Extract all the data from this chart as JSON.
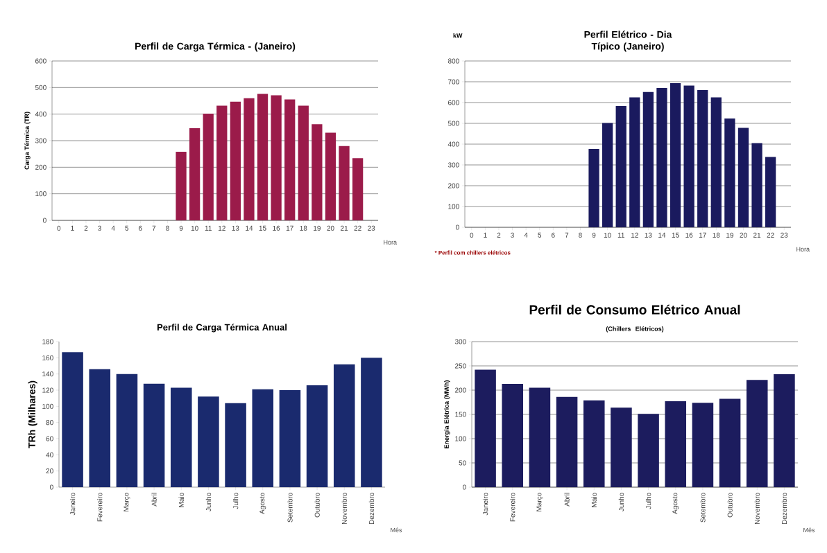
{
  "chart_data": [
    {
      "type": "bar",
      "title": "Perfil de Carga Térmica - (Janeiro)",
      "ylabel": "Carga Térmica (TR)",
      "xlabel": "Hora",
      "categories": [
        "0",
        "1",
        "2",
        "3",
        "4",
        "5",
        "6",
        "7",
        "8",
        "9",
        "10",
        "11",
        "12",
        "13",
        "14",
        "15",
        "16",
        "17",
        "18",
        "19",
        "20",
        "21",
        "22",
        "23"
      ],
      "values": [
        0,
        0,
        0,
        0,
        0,
        0,
        0,
        0,
        0,
        258,
        347,
        402,
        432,
        447,
        460,
        476,
        471,
        455,
        432,
        362,
        330,
        280,
        234,
        0
      ],
      "color": "#9b1b4a",
      "ylim": [
        0,
        600
      ],
      "yticks": [
        0,
        100,
        200,
        300,
        400,
        500,
        600
      ],
      "grid": "y"
    },
    {
      "type": "bar",
      "title": "Perfil Elétrico - Dia Típico (Janeiro)",
      "ylabel": "kW",
      "xlabel": "Hora",
      "annotations": [
        "* Perfil com chillers elétricos"
      ],
      "categories": [
        "0",
        "1",
        "2",
        "3",
        "4",
        "5",
        "6",
        "7",
        "8",
        "9",
        "10",
        "11",
        "12",
        "13",
        "14",
        "15",
        "16",
        "17",
        "18",
        "19",
        "20",
        "21",
        "22",
        "23"
      ],
      "values": [
        0,
        0,
        0,
        0,
        0,
        0,
        0,
        0,
        0,
        377,
        502,
        583,
        625,
        651,
        670,
        693,
        682,
        660,
        625,
        523,
        478,
        405,
        338,
        0
      ],
      "color": "#1a1a5e",
      "ylim": [
        0,
        800
      ],
      "yticks": [
        0,
        100,
        200,
        300,
        400,
        500,
        600,
        700,
        800
      ],
      "grid": "y"
    },
    {
      "type": "bar",
      "title": "Perfil de Carga Térmica Anual",
      "ylabel": "TRh (Milhares)",
      "xlabel": "Mês",
      "categories": [
        "Janeiro",
        "Fevereiro",
        "Março",
        "Abril",
        "Maio",
        "Junho",
        "Julho",
        "Agosto",
        "Setembro",
        "Outubro",
        "Novembro",
        "Dezembro"
      ],
      "values": [
        167,
        146,
        140,
        128,
        123,
        112,
        104,
        121,
        120,
        126,
        152,
        160
      ],
      "color": "#1a2a6e",
      "ylim": [
        0,
        180
      ],
      "yticks": [
        0,
        20,
        40,
        60,
        80,
        100,
        120,
        140,
        160,
        180
      ]
    },
    {
      "type": "bar",
      "title": "Perfil de Consumo Elétrico Anual",
      "subtitle": "(Chillers Elétricos)",
      "ylabel": "Energia Elétrica (MWh)",
      "xlabel": "Mês",
      "categories": [
        "Janeiro",
        "Fevereiro",
        "Março",
        "Abril",
        "Maio",
        "Junho",
        "Julho",
        "Agosto",
        "Setembro",
        "Outubro",
        "Novembro",
        "Dezembro"
      ],
      "values": [
        242,
        213,
        205,
        186,
        179,
        164,
        151,
        177,
        174,
        182,
        221,
        233
      ],
      "color": "#1c1c5e",
      "ylim": [
        0,
        300
      ],
      "yticks": [
        0,
        50,
        100,
        150,
        200,
        250,
        300
      ],
      "grid": "y"
    }
  ]
}
